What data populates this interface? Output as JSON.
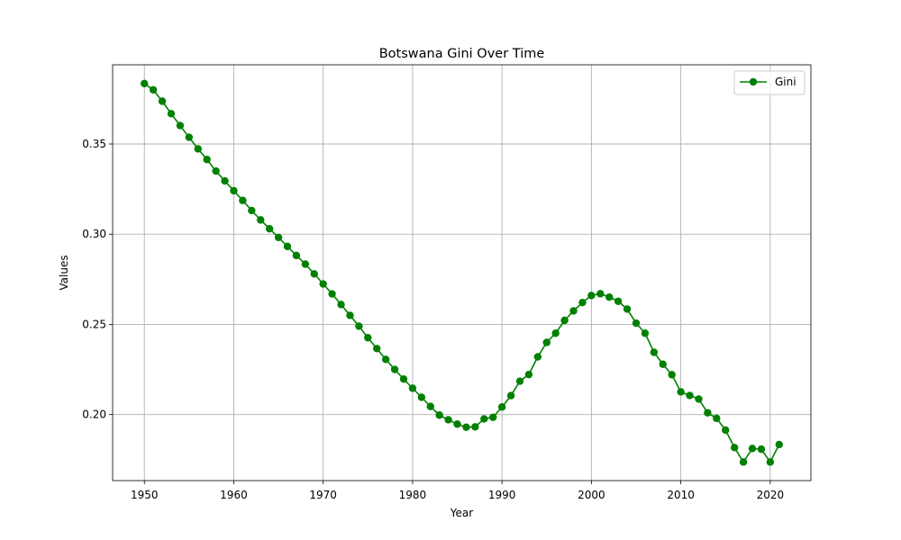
{
  "chart_data": {
    "type": "line",
    "title": "Botswana Gini Over Time",
    "xlabel": "Year",
    "ylabel": "Values",
    "xlim": [
      1946.45,
      2024.55
    ],
    "ylim": [
      0.1634,
      0.3939
    ],
    "xticks": [
      1950,
      1960,
      1970,
      1980,
      1990,
      2000,
      2010,
      2020
    ],
    "yticks": [
      0.2,
      0.25,
      0.3,
      0.35
    ],
    "ytick_labels": [
      "0.20",
      "0.25",
      "0.30",
      "0.35"
    ],
    "grid": true,
    "legend": {
      "position": "upper right"
    },
    "x": [
      1950,
      1951,
      1952,
      1953,
      1954,
      1955,
      1956,
      1957,
      1958,
      1959,
      1960,
      1961,
      1962,
      1963,
      1964,
      1965,
      1966,
      1967,
      1968,
      1969,
      1970,
      1971,
      1972,
      1973,
      1974,
      1975,
      1976,
      1977,
      1978,
      1979,
      1980,
      1981,
      1982,
      1983,
      1984,
      1985,
      1986,
      1987,
      1988,
      1989,
      1990,
      1991,
      1992,
      1993,
      1994,
      1995,
      1996,
      1997,
      1998,
      1999,
      2000,
      2001,
      2002,
      2003,
      2004,
      2005,
      2006,
      2007,
      2008,
      2009,
      2010,
      2011,
      2012,
      2013,
      2014,
      2015,
      2016,
      2017,
      2018,
      2019,
      2020,
      2021
    ],
    "series": [
      {
        "name": "Gini",
        "color": "#008000",
        "marker": "circle",
        "values": [
          0.3835,
          0.38,
          0.3737,
          0.3668,
          0.3602,
          0.3537,
          0.3473,
          0.3414,
          0.335,
          0.3295,
          0.3241,
          0.3187,
          0.3131,
          0.3079,
          0.303,
          0.2982,
          0.2932,
          0.2882,
          0.2834,
          0.278,
          0.2724,
          0.2669,
          0.261,
          0.255,
          0.249,
          0.2426,
          0.2366,
          0.2306,
          0.225,
          0.2197,
          0.2146,
          0.2096,
          0.2045,
          0.1997,
          0.1971,
          0.1947,
          0.193,
          0.1932,
          0.1976,
          0.1985,
          0.2042,
          0.2105,
          0.2185,
          0.2222,
          0.232,
          0.24,
          0.2451,
          0.2522,
          0.2575,
          0.2621,
          0.266,
          0.267,
          0.2651,
          0.2628,
          0.2585,
          0.2507,
          0.2451,
          0.2345,
          0.2279,
          0.2221,
          0.2126,
          0.2106,
          0.2086,
          0.201,
          0.1979,
          0.1914,
          0.1817,
          0.1737,
          0.1812,
          0.1808,
          0.1737,
          0.1834
        ]
      }
    ]
  }
}
